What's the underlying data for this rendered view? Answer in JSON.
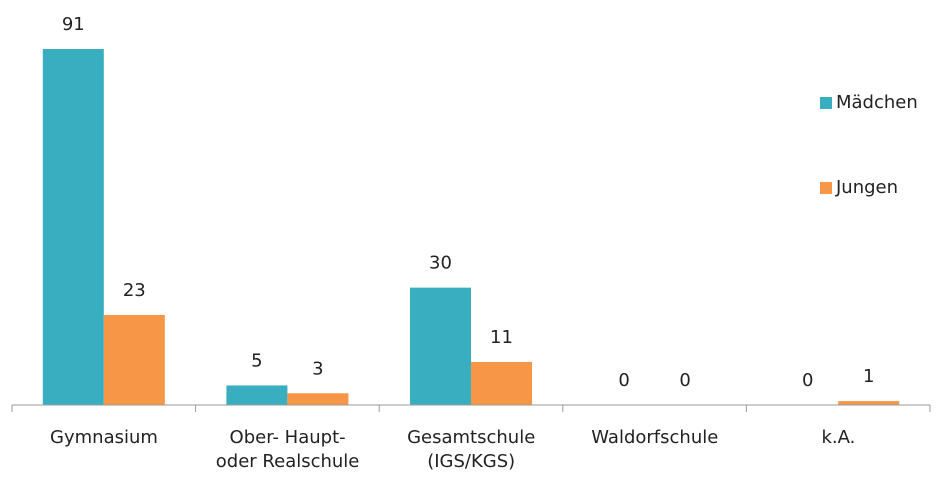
{
  "chart_data": {
    "type": "bar",
    "categories": [
      "Gymnasium",
      "Ober- Haupt-\noder Realschule",
      "Gesamtschule\n(IGS/KGS)",
      "Waldorfschule",
      "k.A."
    ],
    "series": [
      {
        "name": "Mädchen",
        "color": "#3aaec1",
        "values": [
          91,
          5,
          30,
          0,
          0
        ]
      },
      {
        "name": "Jungen",
        "color": "#f79646",
        "values": [
          23,
          3,
          11,
          0,
          1
        ]
      }
    ],
    "legend": "right"
  }
}
